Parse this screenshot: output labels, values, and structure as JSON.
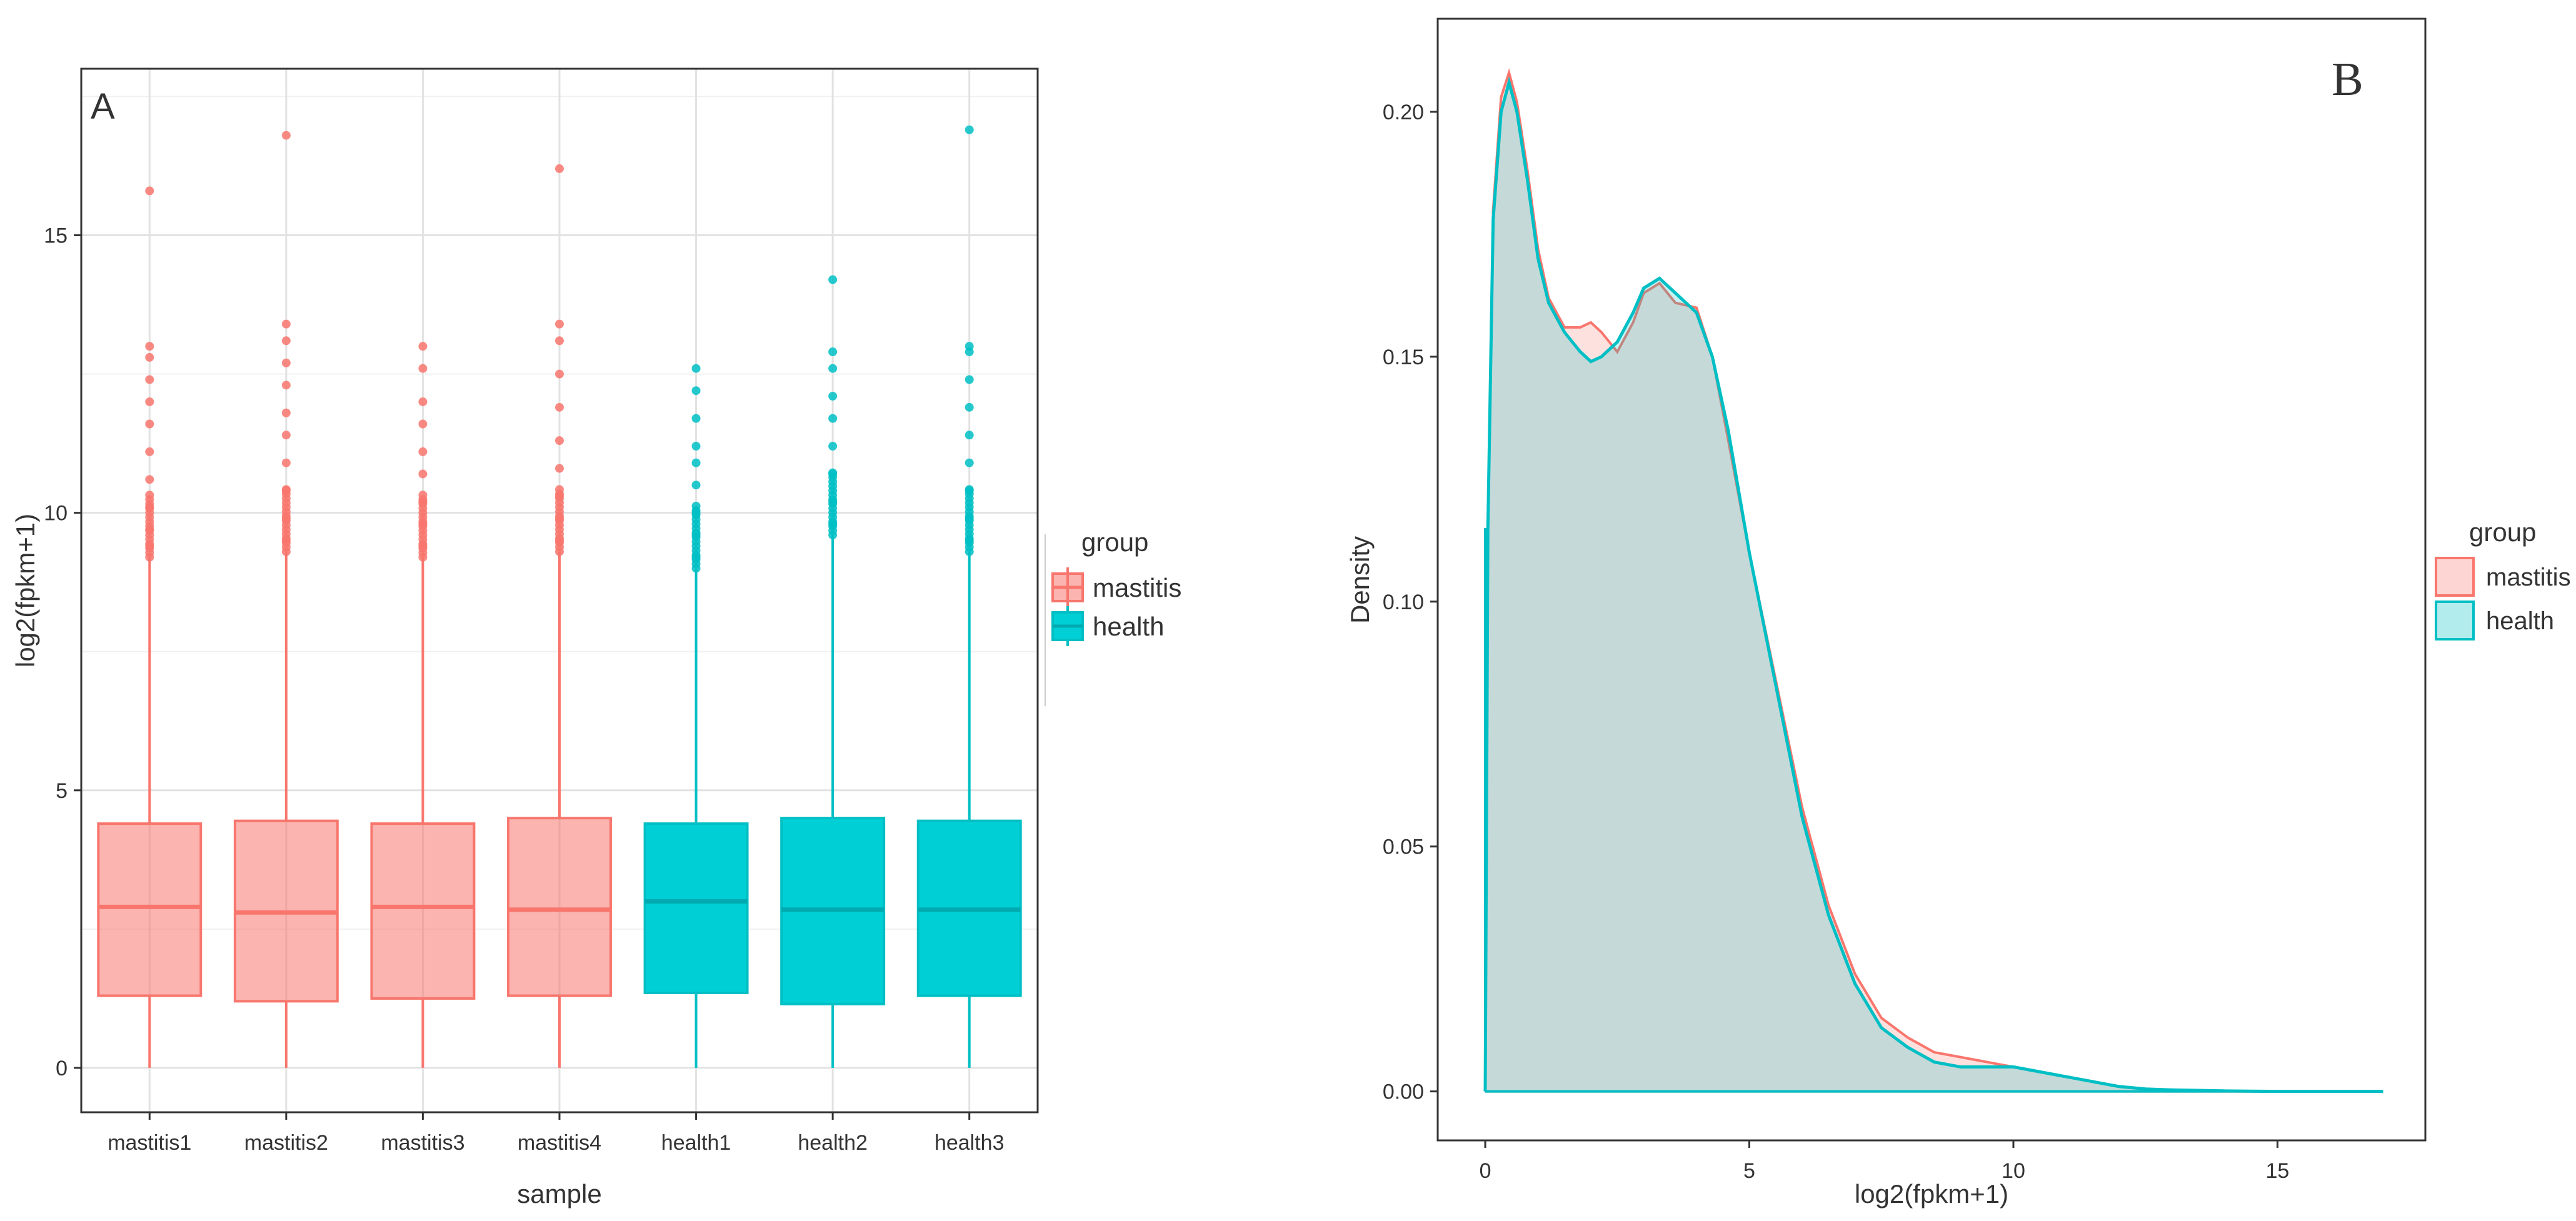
{
  "chart_data": [
    {
      "type": "box",
      "panel_label": "A",
      "xlabel": "sample",
      "ylabel": "log2(fpkm+1)",
      "ylim": [
        -0.8,
        18
      ],
      "yticks": [
        0,
        5,
        10,
        15
      ],
      "grid": true,
      "legend": {
        "title": "group",
        "position": "right",
        "entries": [
          {
            "label": "mastitis",
            "color": "#F8766D"
          },
          {
            "label": "health",
            "color": "#00BFC4"
          }
        ]
      },
      "categories": [
        "mastitis1",
        "mastitis2",
        "mastitis3",
        "mastitis4",
        "health1",
        "health2",
        "health3"
      ],
      "groups": [
        "mastitis",
        "mastitis",
        "mastitis",
        "mastitis",
        "health",
        "health",
        "health"
      ],
      "boxes": [
        {
          "q1": 1.3,
          "median": 2.9,
          "q3": 4.4,
          "whisker_low": 0.0,
          "whisker_high": 9.2,
          "outliers": [
            9.4,
            9.7,
            10.1,
            10.6,
            11.1,
            11.6,
            12.0,
            12.4,
            12.8,
            13.0,
            15.8
          ]
        },
        {
          "q1": 1.2,
          "median": 2.8,
          "q3": 4.45,
          "whisker_low": 0.0,
          "whisker_high": 9.3,
          "outliers": [
            9.5,
            9.9,
            10.4,
            10.9,
            11.4,
            11.8,
            12.3,
            12.7,
            13.1,
            13.4,
            16.8
          ]
        },
        {
          "q1": 1.25,
          "median": 2.9,
          "q3": 4.4,
          "whisker_low": 0.0,
          "whisker_high": 9.2,
          "outliers": [
            9.4,
            9.8,
            10.2,
            10.7,
            11.1,
            11.6,
            12.0,
            12.6,
            13.0
          ]
        },
        {
          "q1": 1.3,
          "median": 2.85,
          "q3": 4.5,
          "whisker_low": 0.0,
          "whisker_high": 9.3,
          "outliers": [
            9.5,
            9.9,
            10.3,
            10.8,
            11.3,
            11.9,
            12.5,
            13.1,
            13.4,
            16.2
          ]
        },
        {
          "q1": 1.35,
          "median": 3.0,
          "q3": 4.4,
          "whisker_low": 0.0,
          "whisker_high": 9.0,
          "outliers": [
            9.2,
            9.6,
            10.0,
            10.5,
            10.9,
            11.2,
            11.7,
            12.2,
            12.6
          ]
        },
        {
          "q1": 1.15,
          "median": 2.85,
          "q3": 4.5,
          "whisker_low": 0.0,
          "whisker_high": 9.6,
          "outliers": [
            9.8,
            10.2,
            10.7,
            11.2,
            11.7,
            12.1,
            12.6,
            12.9,
            14.2
          ]
        },
        {
          "q1": 1.3,
          "median": 2.85,
          "q3": 4.45,
          "whisker_low": 0.0,
          "whisker_high": 9.3,
          "outliers": [
            9.5,
            9.9,
            10.4,
            10.9,
            11.4,
            11.9,
            12.4,
            12.9,
            13.0,
            16.9
          ]
        }
      ]
    },
    {
      "type": "area",
      "panel_label": "B",
      "xlabel": "log2(fpkm+1)",
      "ylabel": "Density",
      "xlim": [
        -0.9,
        17.8
      ],
      "ylim": [
        -0.01,
        0.219
      ],
      "xticks": [
        0,
        5,
        10,
        15
      ],
      "yticks": [
        0.0,
        0.05,
        0.1,
        0.15,
        0.2
      ],
      "ytick_labels": [
        "0.00",
        "0.05",
        "0.10",
        "0.15",
        "0.20"
      ],
      "grid": false,
      "legend": {
        "title": "group",
        "position": "right",
        "entries": [
          {
            "label": "mastitis",
            "color": "#F8766D"
          },
          {
            "label": "health",
            "color": "#00BFC4"
          }
        ]
      },
      "series": [
        {
          "name": "mastitis",
          "color": "#F8766D",
          "x": [
            0,
            0.05,
            0.15,
            0.3,
            0.45,
            0.6,
            0.8,
            1.0,
            1.2,
            1.5,
            1.8,
            2.0,
            2.2,
            2.5,
            2.8,
            3.0,
            3.3,
            3.6,
            4.0,
            4.3,
            4.6,
            5.0,
            5.5,
            6.0,
            6.5,
            7.0,
            7.5,
            8.0,
            8.5,
            9.0,
            9.5,
            10.0,
            10.5,
            11.0,
            11.5,
            12.0,
            12.5,
            13.0,
            14.0,
            15.0,
            16.0,
            17.0
          ],
          "y": [
            0.0,
            0.115,
            0.18,
            0.203,
            0.208,
            0.202,
            0.188,
            0.172,
            0.162,
            0.156,
            0.156,
            0.157,
            0.155,
            0.151,
            0.157,
            0.163,
            0.165,
            0.161,
            0.16,
            0.15,
            0.133,
            0.11,
            0.084,
            0.058,
            0.038,
            0.024,
            0.015,
            0.011,
            0.008,
            0.007,
            0.006,
            0.005,
            0.004,
            0.003,
            0.002,
            0.001,
            0.0005,
            0.0003,
            0.0001,
            0.0,
            0.0,
            0.0
          ]
        },
        {
          "name": "health",
          "color": "#00BFC4",
          "x": [
            0,
            0.05,
            0.15,
            0.3,
            0.45,
            0.6,
            0.8,
            1.0,
            1.2,
            1.5,
            1.8,
            2.0,
            2.2,
            2.5,
            2.8,
            3.0,
            3.3,
            3.6,
            4.0,
            4.3,
            4.6,
            5.0,
            5.5,
            6.0,
            6.5,
            7.0,
            7.5,
            8.0,
            8.5,
            9.0,
            9.5,
            10.0,
            10.5,
            11.0,
            11.5,
            12.0,
            12.5,
            13.0,
            14.0,
            15.0,
            16.0,
            17.0
          ],
          "y": [
            0.0,
            0.115,
            0.178,
            0.2,
            0.206,
            0.2,
            0.186,
            0.17,
            0.161,
            0.155,
            0.151,
            0.149,
            0.15,
            0.153,
            0.159,
            0.164,
            0.166,
            0.163,
            0.159,
            0.15,
            0.135,
            0.11,
            0.083,
            0.056,
            0.036,
            0.022,
            0.013,
            0.009,
            0.006,
            0.005,
            0.005,
            0.005,
            0.004,
            0.003,
            0.002,
            0.001,
            0.0005,
            0.0003,
            0.0001,
            0.0,
            0.0,
            0.0
          ]
        }
      ]
    }
  ]
}
